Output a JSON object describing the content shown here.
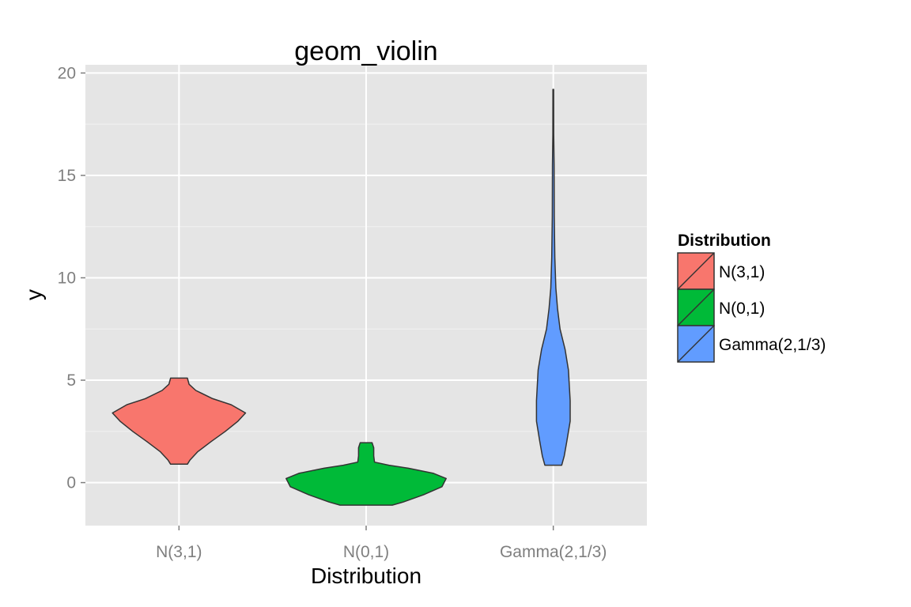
{
  "chart_data": {
    "type": "violin",
    "title": "geom_violin",
    "xlabel": "Distribution",
    "ylabel": "y",
    "ylim": [
      -2.1,
      20.4
    ],
    "yticks": [
      0,
      5,
      10,
      15,
      20
    ],
    "grid": true,
    "categories": [
      "N(3,1)",
      "N(0,1)",
      "Gamma(2,1/3)"
    ],
    "colors": [
      "#F8766D",
      "#00BA38",
      "#619CFF"
    ],
    "legend": {
      "title": "Distribution",
      "position": "right",
      "entries": [
        "N(3,1)",
        "N(0,1)",
        "Gamma(2,1/3)"
      ]
    },
    "series": [
      {
        "category": "N(3,1)",
        "y_min": 0.9,
        "y_max": 5.1,
        "profile": [
          [
            0.9,
            0.1
          ],
          [
            1.1,
            0.13
          ],
          [
            1.5,
            0.22
          ],
          [
            2.0,
            0.38
          ],
          [
            2.5,
            0.55
          ],
          [
            3.0,
            0.7
          ],
          [
            3.4,
            0.79
          ],
          [
            3.8,
            0.62
          ],
          [
            4.1,
            0.4
          ],
          [
            4.5,
            0.2
          ],
          [
            4.8,
            0.12
          ],
          [
            5.1,
            0.1
          ]
        ]
      },
      {
        "category": "N(0,1)",
        "y_min": -1.1,
        "y_max": 1.95,
        "profile": [
          [
            -1.1,
            0.31
          ],
          [
            -0.95,
            0.44
          ],
          [
            -0.6,
            0.68
          ],
          [
            -0.2,
            0.9
          ],
          [
            0.2,
            0.95
          ],
          [
            0.45,
            0.8
          ],
          [
            0.7,
            0.5
          ],
          [
            0.85,
            0.27
          ],
          [
            1.0,
            0.1
          ],
          [
            1.3,
            0.09
          ],
          [
            1.7,
            0.09
          ],
          [
            1.95,
            0.07
          ]
        ]
      },
      {
        "category": "Gamma(2,1/3)",
        "y_min": 0.85,
        "y_max": 19.2,
        "profile": [
          [
            0.85,
            0.1
          ],
          [
            1.3,
            0.13
          ],
          [
            2.0,
            0.16
          ],
          [
            3.0,
            0.2
          ],
          [
            4.0,
            0.2
          ],
          [
            5.5,
            0.18
          ],
          [
            6.5,
            0.14
          ],
          [
            7.5,
            0.08
          ],
          [
            8.5,
            0.05
          ],
          [
            9.5,
            0.03
          ],
          [
            11,
            0.018
          ],
          [
            13,
            0.012
          ],
          [
            15.5,
            0.01
          ],
          [
            17,
            0.005
          ],
          [
            19.2,
            0.004
          ]
        ]
      }
    ]
  }
}
